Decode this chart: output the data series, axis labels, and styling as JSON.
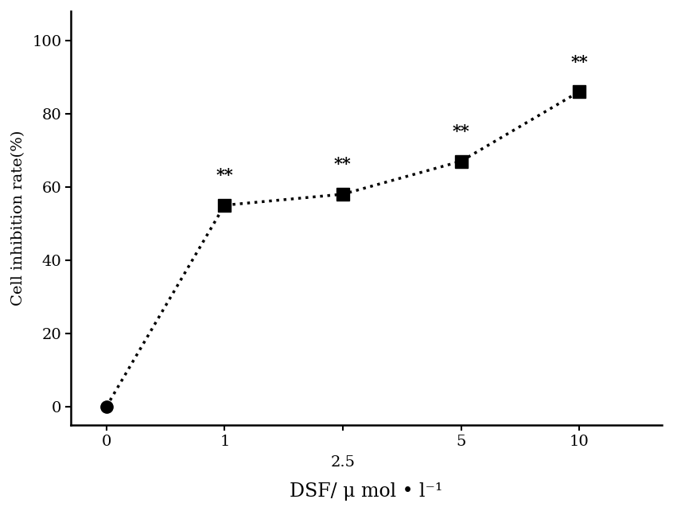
{
  "x_positions": [
    0,
    1,
    2,
    3,
    4
  ],
  "x_labels": [
    "0",
    "1",
    "2.5",
    "5",
    "10"
  ],
  "x_label_2_5_lower": true,
  "y": [
    0,
    55,
    58,
    67,
    86
  ],
  "marker_styles": [
    "o",
    "s",
    "s",
    "s",
    "s"
  ],
  "marker_size": 11,
  "line_color": "#000000",
  "marker_color": "#000000",
  "annotations": [
    null,
    "**",
    "**",
    "**",
    "**"
  ],
  "annotation_offsets_y": [
    6,
    6,
    6,
    6,
    6
  ],
  "xlabel": "DSF/ μ mol • l⁻¹",
  "ylabel": "Cell inhibition rate(%)",
  "xlim": [
    -0.3,
    4.7
  ],
  "ylim": [
    -5,
    108
  ],
  "yticks": [
    0,
    20,
    40,
    60,
    80,
    100
  ],
  "xlabel_fontsize": 17,
  "ylabel_fontsize": 14,
  "tick_fontsize": 14,
  "annotation_fontsize": 15,
  "figsize": [
    8.46,
    6.42
  ],
  "dpi": 100,
  "background_color": "#ffffff",
  "linewidth": 2.5
}
